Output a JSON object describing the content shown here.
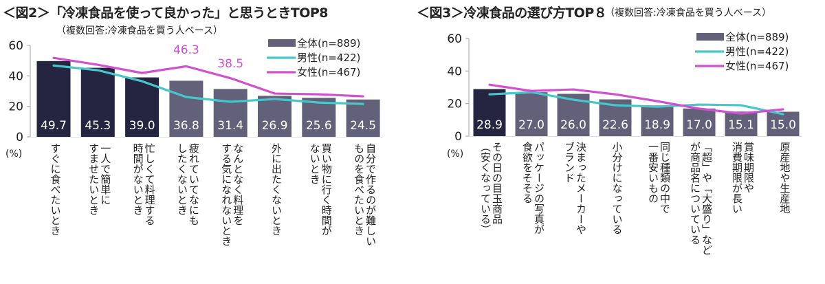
{
  "chart_data": [
    {
      "type": "bar",
      "title": "＜図2＞「冷凍食品を使って良かった」と思うときTOP8",
      "subtitle": "（複数回答:冷凍食品を買う人ベース）",
      "ylabel": "(%)",
      "ylim": [
        0,
        60
      ],
      "yticks": [
        0,
        20,
        40,
        60
      ],
      "legend_position": "top-right",
      "grid": false,
      "categories": [
        "すぐに食べたいとき",
        "一人で簡単に\nすませたいとき",
        "忙しくて料理する\n時間がないとき",
        "疲れていてなにも\nしたくないとき",
        "なんとなく料理を\nする気になれないとき",
        "外に出たくないとき",
        "買い物に行く時間が\nないとき",
        "自分で作るのが難しい\nものを食べたいとき"
      ],
      "series": [
        {
          "name": "全体(n=889)",
          "kind": "bar",
          "values": [
            49.7,
            45.3,
            39.0,
            36.8,
            31.4,
            26.9,
            25.6,
            24.5
          ],
          "highlight_count": 3
        },
        {
          "name": "男性(n=422)",
          "kind": "line",
          "values": [
            46.8,
            43.7,
            36.5,
            26.1,
            23.0,
            24.8,
            22.5,
            21.6
          ]
        },
        {
          "name": "女性(n=467)",
          "kind": "line",
          "values": [
            51.8,
            47.3,
            41.9,
            46.3,
            38.5,
            28.4,
            27.9,
            26.6
          ]
        }
      ],
      "annotations": [
        {
          "series": "女性(n=467)",
          "index": 3,
          "text": "46.3"
        },
        {
          "series": "女性(n=467)",
          "index": 4,
          "text": "38.5"
        }
      ]
    },
    {
      "type": "bar",
      "title": "＜図3＞冷凍食品の選び方TOP８",
      "subtitle": "（複数回答:冷凍食品を買う人ベース）",
      "ylabel": "(%)",
      "ylim": [
        0,
        60
      ],
      "yticks": [
        0,
        20,
        40,
        60
      ],
      "legend_position": "top-right",
      "grid": false,
      "categories": [
        "その日の目玉商品\n（安くなっている）",
        "パッケージの写真が\n食欲をそそる",
        "決まったメーカーや\nブランド",
        "小分けになっている",
        "同じ種類の中で\n一番安いもの",
        "「超」や「大盛り」など\nが商品名についている",
        "賞味期限や\n消費期限が長い",
        "原産地や生産地"
      ],
      "series": [
        {
          "name": "全体(n=889)",
          "kind": "bar",
          "values": [
            28.9,
            27.0,
            26.0,
            22.6,
            18.9,
            17.0,
            15.1,
            15.0
          ],
          "highlight_count": 1
        },
        {
          "name": "男性(n=422)",
          "kind": "line",
          "values": [
            25.7,
            27.0,
            22.4,
            19.0,
            18.1,
            19.4,
            19.0,
            13.5
          ]
        },
        {
          "name": "女性(n=467)",
          "kind": "line",
          "values": [
            31.6,
            27.8,
            28.7,
            25.7,
            21.5,
            16.9,
            13.9,
            16.5
          ]
        }
      ],
      "annotations": []
    }
  ],
  "colors": {
    "bar_highlight": "#252541",
    "bar_normal": "#63617a",
    "male_line": "#45c8cc",
    "female_line": "#d050d0",
    "axis": "#b0b0b0",
    "bar_label": "#ffffff",
    "annotation": "#d050d0"
  }
}
